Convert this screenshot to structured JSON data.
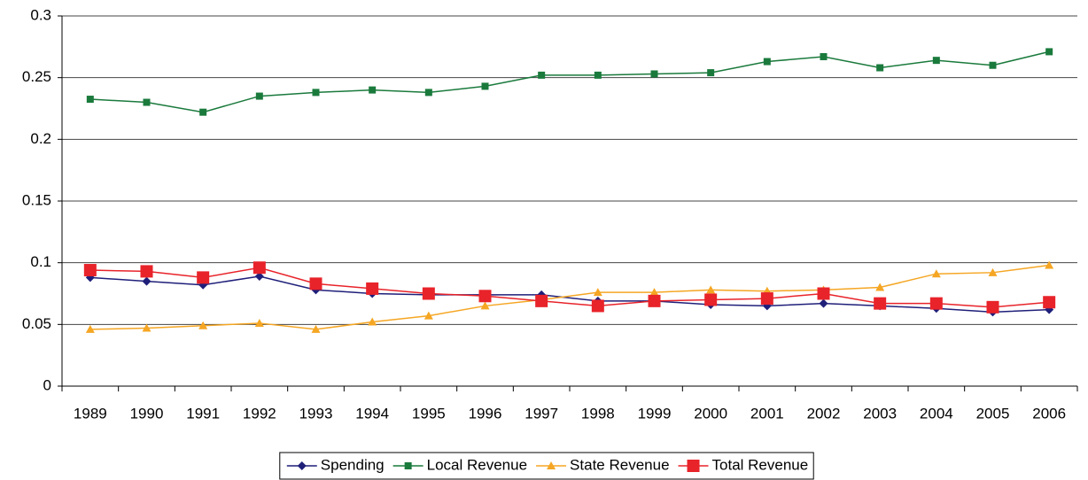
{
  "chart_data": {
    "type": "line",
    "categories": [
      "1989",
      "1990",
      "1991",
      "1992",
      "1993",
      "1994",
      "1995",
      "1996",
      "1997",
      "1998",
      "1999",
      "2000",
      "2001",
      "2002",
      "2003",
      "2004",
      "2005",
      "2006"
    ],
    "series": [
      {
        "name": "Spending",
        "color": "#1f1f7a",
        "marker": "diamond",
        "values": [
          0.088,
          0.085,
          0.082,
          0.089,
          0.078,
          0.075,
          0.074,
          0.074,
          0.074,
          0.069,
          0.069,
          0.066,
          0.065,
          0.067,
          0.065,
          0.063,
          0.06,
          0.062
        ]
      },
      {
        "name": "Local Revenue",
        "color": "#1a7a3c",
        "marker": "square",
        "values": [
          0.2325,
          0.23,
          0.222,
          0.235,
          0.238,
          0.24,
          0.238,
          0.243,
          0.252,
          0.252,
          0.253,
          0.254,
          0.263,
          0.267,
          0.258,
          0.264,
          0.26,
          0.271
        ]
      },
      {
        "name": "State Revenue",
        "color": "#f5a623",
        "marker": "triangle",
        "values": [
          0.046,
          0.047,
          0.049,
          0.051,
          0.046,
          0.052,
          0.057,
          0.065,
          0.07,
          0.076,
          0.076,
          0.078,
          0.077,
          0.078,
          0.08,
          0.091,
          0.092,
          0.098
        ]
      },
      {
        "name": "Total Revenue",
        "color": "#e8232a",
        "marker": "big-square",
        "values": [
          0.094,
          0.093,
          0.088,
          0.096,
          0.083,
          0.079,
          0.075,
          0.073,
          0.069,
          0.065,
          0.069,
          0.07,
          0.071,
          0.075,
          0.067,
          0.067,
          0.064,
          0.068
        ]
      }
    ],
    "ylim": [
      0,
      0.3
    ],
    "yticks": [
      0,
      0.05,
      0.1,
      0.15,
      0.2,
      0.25,
      0.3
    ],
    "grid": true,
    "legend": "bottom"
  }
}
